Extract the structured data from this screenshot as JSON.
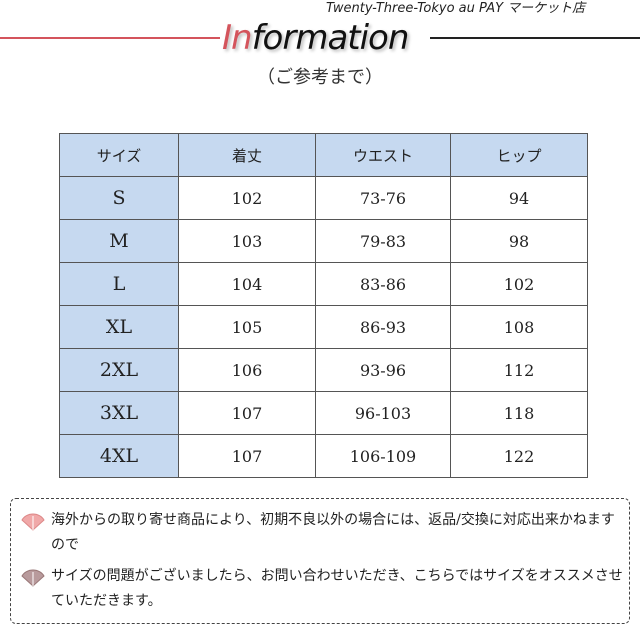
{
  "header": {
    "title_accent": "In",
    "title_rest": "formation",
    "shop_name": "Twenty-Three-Tokyo au PAY マーケット店",
    "subtitle": "（ご参考まで）"
  },
  "colors": {
    "accent_red": "#d4545c",
    "table_header_blue": "#c6d9f0"
  },
  "table": {
    "headers": [
      "サイズ",
      "着丈",
      "ウエスト",
      "ヒップ"
    ],
    "rows": [
      [
        "S",
        "102",
        "73-76",
        "94"
      ],
      [
        "M",
        "103",
        "79-83",
        "98"
      ],
      [
        "L",
        "104",
        "83-86",
        "102"
      ],
      [
        "XL",
        "105",
        "86-93",
        "108"
      ],
      [
        "2XL",
        "106",
        "93-96",
        "112"
      ],
      [
        "3XL",
        "107",
        "96-103",
        "118"
      ],
      [
        "4XL",
        "107",
        "106-109",
        "122"
      ]
    ]
  },
  "notes": [
    {
      "icon": "fan-icon-pink",
      "text": "海外からの取り寄せ商品により、初期不良以外の場合には、返品/交換に対応出来かねますので"
    },
    {
      "icon": "fan-icon-mauve",
      "text": "サイズの問題がございましたら、お問い合わせいただき、こちらではサイズをオススメさせていただきます。"
    }
  ]
}
